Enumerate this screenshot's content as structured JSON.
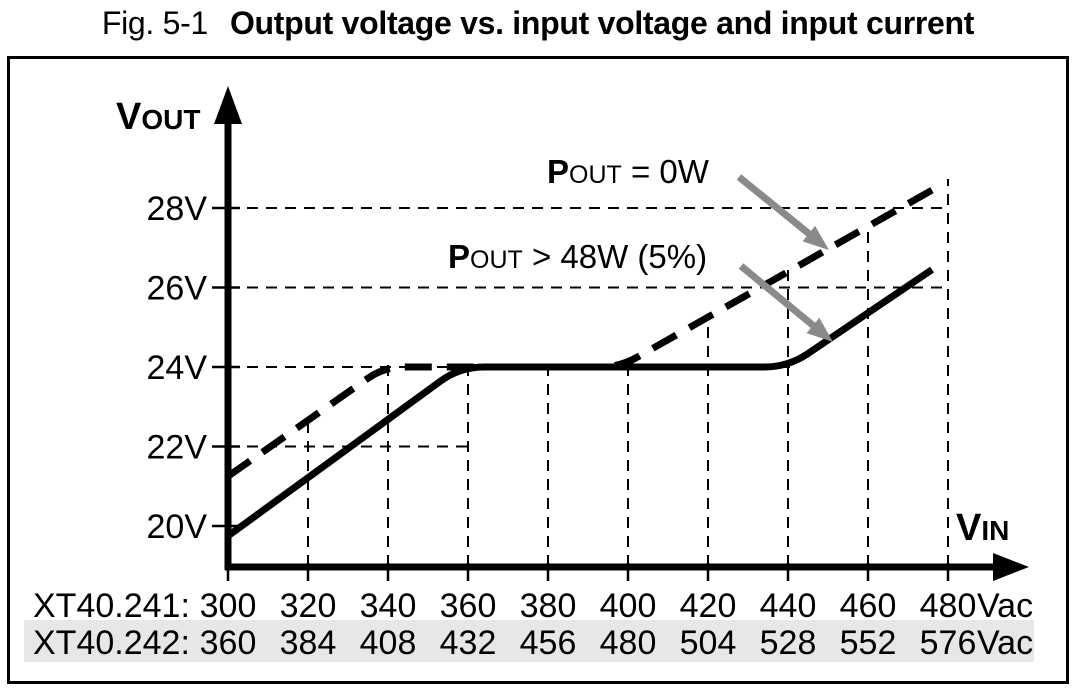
{
  "figure": {
    "label": "Fig. 5-1",
    "title": "Output voltage vs. input voltage and input current"
  },
  "colors": {
    "ink": "#000000",
    "arrow": "#8a8a8a",
    "highlight_band": "#e7e7e7",
    "background": "#ffffff"
  },
  "chart_data": {
    "type": "line",
    "title": "Output voltage vs. input voltage and input current",
    "xlabel": "VIN",
    "xlabel_main": "V",
    "xlabel_sub": "IN",
    "ylabel": "VOUT",
    "ylabel_main": "V",
    "ylabel_sub": "OUT",
    "x_unit": "Vac",
    "y_unit": "V",
    "grid": true,
    "x_ticks": [
      300,
      320,
      340,
      360,
      380,
      400,
      420,
      440,
      460,
      480
    ],
    "y_ticks": [
      20,
      22,
      24,
      26,
      28
    ],
    "x_range": [
      300,
      500
    ],
    "y_range": [
      19,
      30
    ],
    "x_scale_rows": [
      {
        "model": "XT40.241:",
        "values": [
          "300",
          "320",
          "340",
          "360",
          "380",
          "400",
          "420",
          "440",
          "460",
          "480"
        ],
        "suffix": "Vac",
        "highlighted": false
      },
      {
        "model": "XT40.242:",
        "values": [
          "360",
          "384",
          "408",
          "432",
          "456",
          "480",
          "504",
          "528",
          "552",
          "576"
        ],
        "suffix": "Vac",
        "highlighted": true
      }
    ],
    "series": [
      {
        "name": "POUT = 0W",
        "style": "dashed",
        "points": [
          [
            300,
            21.25
          ],
          [
            339,
            24
          ],
          [
            398,
            24
          ],
          [
            476,
            28.45
          ]
        ]
      },
      {
        "name": "POUT > 48W (5%)",
        "style": "solid",
        "points": [
          [
            300,
            19.75
          ],
          [
            358,
            24
          ],
          [
            440,
            24
          ],
          [
            476,
            26.45
          ]
        ]
      }
    ],
    "annotations": [
      {
        "id": "pout-0w",
        "text_main": "P",
        "text_sub": "OUT",
        "text_rest": " = 0W",
        "points_to": "dashed"
      },
      {
        "id": "pout-48w",
        "text_main": "P",
        "text_sub": "OUT",
        "text_rest": " > 48W (5%)",
        "points_to": "solid"
      }
    ]
  }
}
